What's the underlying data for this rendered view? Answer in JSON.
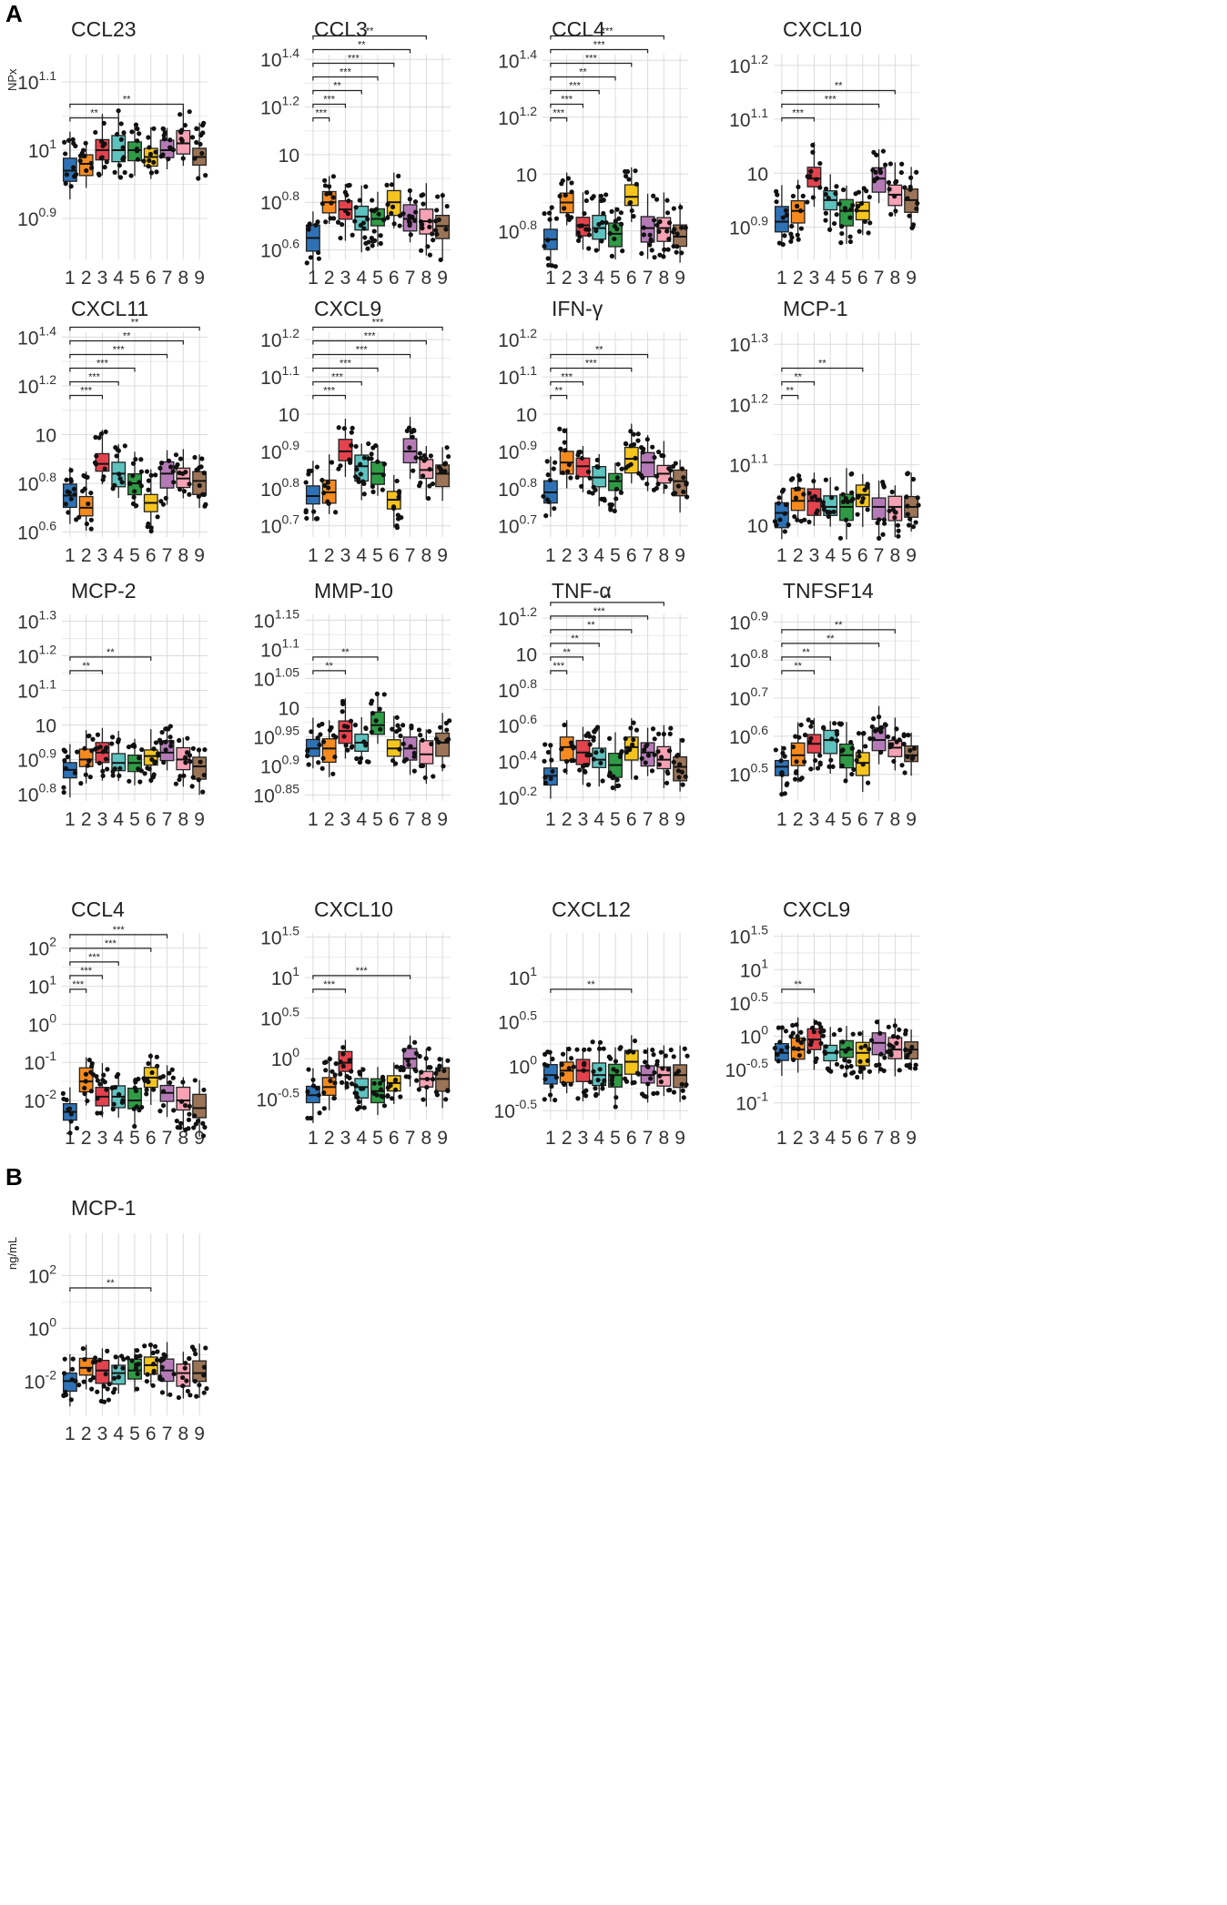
{
  "colors": [
    "#2E72B5",
    "#F58A1F",
    "#E4424D",
    "#5EC2BF",
    "#2F9C45",
    "#F5C51E",
    "#B47AB6",
    "#F7A1B4",
    "#9B7457"
  ],
  "groups": [
    "1",
    "2",
    "3",
    "4",
    "5",
    "6",
    "7",
    "8",
    "9"
  ],
  "panels": [
    {
      "letter": "A",
      "unit": "NPx"
    },
    {
      "letter": "B",
      "unit": "ng/mL"
    }
  ],
  "chart_data": [
    {
      "panel": "A",
      "type": "box",
      "title": "CCL23",
      "yscale": "log10",
      "ylim": [
        0.84,
        1.14
      ],
      "yticks": [
        {
          "base": "10",
          "exp": "0.9",
          "v": 0.9
        },
        {
          "base": "10",
          "exp": "1",
          "v": 1.0
        },
        {
          "base": "10",
          "exp": "1.1",
          "v": 1.1
        }
      ],
      "medians": [
        0.97,
        0.98,
        1.0,
        1.0,
        1.0,
        0.99,
        1.0,
        1.01,
        0.99
      ],
      "brackets": [
        {
          "from": 1,
          "to": 4,
          "label": "**"
        },
        {
          "from": 1,
          "to": 8,
          "label": "**"
        }
      ]
    },
    {
      "panel": "A",
      "type": "box",
      "title": "CCL3",
      "yscale": "log10",
      "ylim": [
        0.56,
        1.42
      ],
      "yticks": [
        {
          "base": "10",
          "exp": "0.6",
          "v": 0.6
        },
        {
          "base": "10",
          "exp": "0.8",
          "v": 0.8
        },
        {
          "base": "10",
          "exp": "",
          "v": 1.0
        },
        {
          "base": "10",
          "exp": "1.2",
          "v": 1.2
        },
        {
          "base": "10",
          "exp": "1.4",
          "v": 1.4
        }
      ],
      "medians": [
        0.65,
        0.8,
        0.77,
        0.74,
        0.73,
        0.8,
        0.73,
        0.72,
        0.7
      ],
      "brackets": [
        {
          "from": 1,
          "to": 2,
          "label": "***"
        },
        {
          "from": 1,
          "to": 3,
          "label": "***"
        },
        {
          "from": 1,
          "to": 4,
          "label": "**"
        },
        {
          "from": 1,
          "to": 5,
          "label": "***"
        },
        {
          "from": 1,
          "to": 6,
          "label": "***"
        },
        {
          "from": 1,
          "to": 7,
          "label": "**"
        },
        {
          "from": 1,
          "to": 8,
          "label": "**"
        }
      ]
    },
    {
      "panel": "A",
      "type": "box",
      "title": "CCL4",
      "yscale": "log10",
      "ylim": [
        0.7,
        1.42
      ],
      "yticks": [
        {
          "base": "10",
          "exp": "0.8",
          "v": 0.8
        },
        {
          "base": "10",
          "exp": "",
          "v": 1.0
        },
        {
          "base": "10",
          "exp": "1.2",
          "v": 1.2
        },
        {
          "base": "10",
          "exp": "1.4",
          "v": 1.4
        }
      ],
      "medians": [
        0.77,
        0.9,
        0.82,
        0.81,
        0.79,
        0.92,
        0.81,
        0.81,
        0.78
      ],
      "brackets": [
        {
          "from": 1,
          "to": 2,
          "label": "***"
        },
        {
          "from": 1,
          "to": 3,
          "label": "***"
        },
        {
          "from": 1,
          "to": 4,
          "label": "***"
        },
        {
          "from": 1,
          "to": 5,
          "label": "**"
        },
        {
          "from": 1,
          "to": 6,
          "label": "***"
        },
        {
          "from": 1,
          "to": 7,
          "label": "***"
        },
        {
          "from": 1,
          "to": 8,
          "label": "***"
        }
      ]
    },
    {
      "panel": "A",
      "type": "box",
      "title": "CXCL10",
      "yscale": "log10",
      "ylim": [
        0.84,
        1.22
      ],
      "yticks": [
        {
          "base": "10",
          "exp": "0.9",
          "v": 0.9
        },
        {
          "base": "10",
          "exp": "",
          "v": 1.0
        },
        {
          "base": "10",
          "exp": "1.1",
          "v": 1.1
        },
        {
          "base": "10",
          "exp": "1.2",
          "v": 1.2
        }
      ],
      "medians": [
        0.91,
        0.93,
        0.99,
        0.95,
        0.93,
        0.93,
        0.99,
        0.96,
        0.95
      ],
      "brackets": [
        {
          "from": 1,
          "to": 3,
          "label": "***"
        },
        {
          "from": 1,
          "to": 7,
          "label": "***"
        },
        {
          "from": 1,
          "to": 8,
          "label": "**"
        }
      ]
    },
    {
      "panel": "A",
      "type": "box",
      "title": "CXCL11",
      "yscale": "log10",
      "ylim": [
        0.58,
        1.42
      ],
      "yticks": [
        {
          "base": "10",
          "exp": "0.6",
          "v": 0.6
        },
        {
          "base": "10",
          "exp": "0.8",
          "v": 0.8
        },
        {
          "base": "10",
          "exp": "",
          "v": 1.0
        },
        {
          "base": "10",
          "exp": "1.2",
          "v": 1.2
        },
        {
          "base": "10",
          "exp": "1.4",
          "v": 1.4
        }
      ],
      "medians": [
        0.75,
        0.7,
        0.88,
        0.84,
        0.8,
        0.72,
        0.84,
        0.82,
        0.81
      ],
      "brackets": [
        {
          "from": 1,
          "to": 3,
          "label": "***"
        },
        {
          "from": 1,
          "to": 4,
          "label": "***"
        },
        {
          "from": 1,
          "to": 5,
          "label": "***"
        },
        {
          "from": 1,
          "to": 7,
          "label": "***"
        },
        {
          "from": 1,
          "to": 8,
          "label": "**"
        },
        {
          "from": 1,
          "to": 9,
          "label": "**"
        }
      ]
    },
    {
      "panel": "A",
      "type": "box",
      "title": "CXCL9",
      "yscale": "log10",
      "ylim": [
        0.67,
        1.22
      ],
      "yticks": [
        {
          "base": "10",
          "exp": "0.7",
          "v": 0.7
        },
        {
          "base": "10",
          "exp": "0.8",
          "v": 0.8
        },
        {
          "base": "10",
          "exp": "0.9",
          "v": 0.9
        },
        {
          "base": "10",
          "exp": "",
          "v": 1.0
        },
        {
          "base": "10",
          "exp": "1.1",
          "v": 1.1
        },
        {
          "base": "10",
          "exp": "1.2",
          "v": 1.2
        }
      ],
      "medians": [
        0.78,
        0.79,
        0.9,
        0.86,
        0.84,
        0.77,
        0.9,
        0.85,
        0.84
      ],
      "brackets": [
        {
          "from": 1,
          "to": 3,
          "label": "***"
        },
        {
          "from": 1,
          "to": 4,
          "label": "***"
        },
        {
          "from": 1,
          "to": 5,
          "label": "***"
        },
        {
          "from": 1,
          "to": 7,
          "label": "***"
        },
        {
          "from": 1,
          "to": 8,
          "label": "***"
        },
        {
          "from": 1,
          "to": 9,
          "label": "***"
        }
      ]
    },
    {
      "panel": "A",
      "type": "box",
      "title": "IFN-γ",
      "yscale": "log10",
      "ylim": [
        0.67,
        1.22
      ],
      "yticks": [
        {
          "base": "10",
          "exp": "0.7",
          "v": 0.7
        },
        {
          "base": "10",
          "exp": "0.8",
          "v": 0.8
        },
        {
          "base": "10",
          "exp": "0.9",
          "v": 0.9
        },
        {
          "base": "10",
          "exp": "",
          "v": 1.0
        },
        {
          "base": "10",
          "exp": "1.1",
          "v": 1.1
        },
        {
          "base": "10",
          "exp": "1.2",
          "v": 1.2
        }
      ],
      "medians": [
        0.79,
        0.87,
        0.86,
        0.83,
        0.82,
        0.88,
        0.87,
        0.84,
        0.82
      ],
      "brackets": [
        {
          "from": 1,
          "to": 2,
          "label": "**"
        },
        {
          "from": 1,
          "to": 3,
          "label": "***"
        },
        {
          "from": 1,
          "to": 6,
          "label": "***"
        },
        {
          "from": 1,
          "to": 7,
          "label": "**"
        }
      ]
    },
    {
      "panel": "A",
      "type": "box",
      "title": "MCP-1",
      "yscale": "log10",
      "ylim": [
        0.98,
        1.32
      ],
      "yticks": [
        {
          "base": "10",
          "exp": "",
          "v": 1.0
        },
        {
          "base": "10",
          "exp": "1.1",
          "v": 1.1
        },
        {
          "base": "10",
          "exp": "1.2",
          "v": 1.2
        },
        {
          "base": "10",
          "exp": "1.3",
          "v": 1.3
        }
      ],
      "medians": [
        1.02,
        1.04,
        1.04,
        1.03,
        1.03,
        1.05,
        1.03,
        1.03,
        1.03
      ],
      "brackets": [
        {
          "from": 1,
          "to": 2,
          "label": "**"
        },
        {
          "from": 1,
          "to": 3,
          "label": "**"
        },
        {
          "from": 1,
          "to": 6,
          "label": "**"
        }
      ]
    },
    {
      "panel": "A",
      "type": "box",
      "title": "MCP-2",
      "yscale": "log10",
      "ylim": [
        0.78,
        1.32
      ],
      "yticks": [
        {
          "base": "10",
          "exp": "0.8",
          "v": 0.8
        },
        {
          "base": "10",
          "exp": "0.9",
          "v": 0.9
        },
        {
          "base": "10",
          "exp": "",
          "v": 1.0
        },
        {
          "base": "10",
          "exp": "1.1",
          "v": 1.1
        },
        {
          "base": "10",
          "exp": "1.2",
          "v": 1.2
        },
        {
          "base": "10",
          "exp": "1.3",
          "v": 1.3
        }
      ],
      "medians": [
        0.87,
        0.9,
        0.92,
        0.89,
        0.89,
        0.91,
        0.92,
        0.9,
        0.88
      ],
      "brackets": [
        {
          "from": 1,
          "to": 3,
          "label": "**"
        },
        {
          "from": 1,
          "to": 6,
          "label": "**"
        }
      ]
    },
    {
      "panel": "A",
      "type": "box",
      "title": "MMP-10",
      "yscale": "log10",
      "ylim": [
        0.84,
        1.16
      ],
      "yticks": [
        {
          "base": "10",
          "exp": "0.85",
          "v": 0.85
        },
        {
          "base": "10",
          "exp": "0.9",
          "v": 0.9
        },
        {
          "base": "10",
          "exp": "0.95",
          "v": 0.95
        },
        {
          "base": "10",
          "exp": "",
          "v": 1.0
        },
        {
          "base": "10",
          "exp": "1.05",
          "v": 1.05
        },
        {
          "base": "10",
          "exp": "1.1",
          "v": 1.1
        },
        {
          "base": "10",
          "exp": "1.15",
          "v": 1.15
        }
      ],
      "medians": [
        0.93,
        0.93,
        0.96,
        0.94,
        0.97,
        0.93,
        0.93,
        0.92,
        0.94
      ],
      "brackets": [
        {
          "from": 1,
          "to": 3,
          "label": "**"
        },
        {
          "from": 1,
          "to": 5,
          "label": "**"
        }
      ]
    },
    {
      "panel": "A",
      "type": "box",
      "title": "TNF-α",
      "yscale": "log10",
      "ylim": [
        0.18,
        1.22
      ],
      "yticks": [
        {
          "base": "10",
          "exp": "0.2",
          "v": 0.2
        },
        {
          "base": "10",
          "exp": "0.4",
          "v": 0.4
        },
        {
          "base": "10",
          "exp": "0.6",
          "v": 0.6
        },
        {
          "base": "10",
          "exp": "0.8",
          "v": 0.8
        },
        {
          "base": "10",
          "exp": "",
          "v": 1.0
        },
        {
          "base": "10",
          "exp": "1.2",
          "v": 1.2
        }
      ],
      "medians": [
        0.32,
        0.48,
        0.45,
        0.41,
        0.38,
        0.48,
        0.45,
        0.41,
        0.37
      ],
      "brackets": [
        {
          "from": 1,
          "to": 2,
          "label": "***"
        },
        {
          "from": 1,
          "to": 3,
          "label": "**"
        },
        {
          "from": 1,
          "to": 4,
          "label": "**"
        },
        {
          "from": 1,
          "to": 6,
          "label": "**"
        },
        {
          "from": 1,
          "to": 7,
          "label": "***"
        },
        {
          "from": 1,
          "to": 8,
          "label": "**"
        }
      ]
    },
    {
      "panel": "A",
      "type": "box",
      "title": "TNFSF14",
      "yscale": "log10",
      "ylim": [
        0.43,
        0.92
      ],
      "yticks": [
        {
          "base": "10",
          "exp": "0.5",
          "v": 0.5
        },
        {
          "base": "10",
          "exp": "0.6",
          "v": 0.6
        },
        {
          "base": "10",
          "exp": "0.7",
          "v": 0.7
        },
        {
          "base": "10",
          "exp": "0.8",
          "v": 0.8
        },
        {
          "base": "10",
          "exp": "0.9",
          "v": 0.9
        }
      ],
      "medians": [
        0.52,
        0.55,
        0.58,
        0.59,
        0.55,
        0.53,
        0.59,
        0.57,
        0.55
      ],
      "brackets": [
        {
          "from": 1,
          "to": 3,
          "label": "**"
        },
        {
          "from": 1,
          "to": 4,
          "label": "**"
        },
        {
          "from": 1,
          "to": 7,
          "label": "**"
        },
        {
          "from": 1,
          "to": 8,
          "label": "**"
        }
      ]
    },
    {
      "panel": "B",
      "type": "box",
      "title": "CCL4",
      "yscale": "log10",
      "ylim": [
        -2.5,
        2.4
      ],
      "yticks": [
        {
          "base": "10",
          "exp": "-2",
          "v": -2
        },
        {
          "base": "10",
          "exp": "-1",
          "v": -1
        },
        {
          "base": "10",
          "exp": "0",
          "v": 0
        },
        {
          "base": "10",
          "exp": "1",
          "v": 1
        },
        {
          "base": "10",
          "exp": "2",
          "v": 2
        }
      ],
      "medians": [
        -2.3,
        -1.5,
        -1.9,
        -1.9,
        -2.0,
        -1.4,
        -1.8,
        -2.0,
        -2.2
      ],
      "brackets": [
        {
          "from": 1,
          "to": 2,
          "label": "***"
        },
        {
          "from": 1,
          "to": 3,
          "label": "***"
        },
        {
          "from": 1,
          "to": 4,
          "label": "***"
        },
        {
          "from": 1,
          "to": 6,
          "label": "***"
        },
        {
          "from": 1,
          "to": 7,
          "label": "***"
        }
      ]
    },
    {
      "panel": "B",
      "type": "box",
      "title": "CXCL10",
      "yscale": "log10",
      "ylim": [
        -0.75,
        1.55
      ],
      "yticks": [
        {
          "base": "10",
          "exp": "-0.5",
          "v": -0.5
        },
        {
          "base": "10",
          "exp": "0",
          "v": 0
        },
        {
          "base": "10",
          "exp": "0.5",
          "v": 0.5
        },
        {
          "base": "10",
          "exp": "1",
          "v": 1
        },
        {
          "base": "10",
          "exp": "1.5",
          "v": 1.5
        }
      ],
      "medians": [
        -0.45,
        -0.35,
        -0.05,
        -0.35,
        -0.4,
        -0.3,
        0.0,
        -0.25,
        -0.25
      ],
      "brackets": [
        {
          "from": 1,
          "to": 3,
          "label": "***"
        },
        {
          "from": 1,
          "to": 7,
          "label": "***"
        }
      ]
    },
    {
      "panel": "B",
      "type": "box",
      "title": "CXCL12",
      "yscale": "log10",
      "ylim": [
        -0.6,
        1.5
      ],
      "yticks": [
        {
          "base": "10",
          "exp": "-0.5",
          "v": -0.5
        },
        {
          "base": "10",
          "exp": "0",
          "v": 0
        },
        {
          "base": "10",
          "exp": "0.5",
          "v": 0.5
        },
        {
          "base": "10",
          "exp": "1",
          "v": 1
        }
      ],
      "medians": [
        -0.1,
        -0.05,
        -0.05,
        -0.1,
        -0.1,
        0.05,
        -0.1,
        -0.1,
        -0.1
      ],
      "brackets": [
        {
          "from": 1,
          "to": 6,
          "label": "**"
        }
      ]
    },
    {
      "panel": "B",
      "type": "box",
      "title": "CXCL9",
      "yscale": "log10",
      "ylim": [
        -1.25,
        1.55
      ],
      "yticks": [
        {
          "base": "10",
          "exp": "-1",
          "v": -1
        },
        {
          "base": "10",
          "exp": "-0.5",
          "v": -0.5
        },
        {
          "base": "10",
          "exp": "0",
          "v": 0
        },
        {
          "base": "10",
          "exp": "0.5",
          "v": 0.5
        },
        {
          "base": "10",
          "exp": "1",
          "v": 1
        },
        {
          "base": "10",
          "exp": "1.5",
          "v": 1.5
        }
      ],
      "medians": [
        -0.25,
        -0.2,
        -0.05,
        -0.25,
        -0.2,
        -0.25,
        -0.1,
        -0.2,
        -0.2
      ],
      "brackets": [
        {
          "from": 1,
          "to": 3,
          "label": "**"
        }
      ]
    },
    {
      "panel": "B",
      "type": "box",
      "title": "MCP-1",
      "yscale": "log10",
      "ylim": [
        -3.3,
        3.6
      ],
      "yticks": [
        {
          "base": "10",
          "exp": "-2",
          "v": -2
        },
        {
          "base": "10",
          "exp": "0",
          "v": 0
        },
        {
          "base": "10",
          "exp": "2",
          "v": 2
        }
      ],
      "medians": [
        -2.0,
        -1.5,
        -1.6,
        -1.7,
        -1.6,
        -1.4,
        -1.6,
        -1.7,
        -1.7
      ],
      "brackets": [
        {
          "from": 1,
          "to": 6,
          "label": "**"
        }
      ]
    }
  ]
}
